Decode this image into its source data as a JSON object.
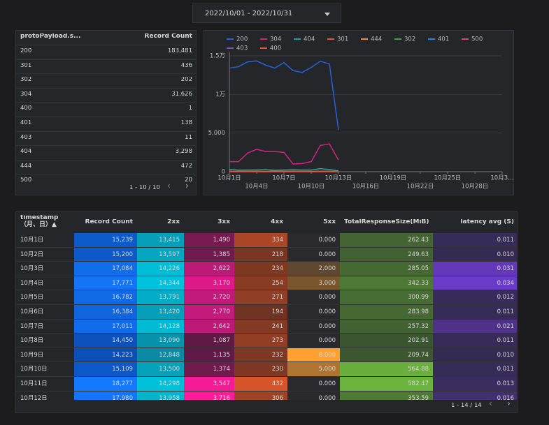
{
  "date_range": {
    "label": "2022/10/01 - 2022/10/31"
  },
  "top_table": {
    "headers": [
      "protoPayload.s...",
      "Record Count"
    ],
    "rows": [
      [
        "200",
        "183,481"
      ],
      [
        "301",
        "436"
      ],
      [
        "302",
        "202"
      ],
      [
        "304",
        "31,626"
      ],
      [
        "400",
        "1"
      ],
      [
        "401",
        "138"
      ],
      [
        "403",
        "11"
      ],
      [
        "404",
        "3,298"
      ],
      [
        "444",
        "472"
      ],
      [
        "500",
        "20"
      ]
    ],
    "pagination": "1 - 10 / 10"
  },
  "chart_data": {
    "type": "line",
    "categories": [
      "10月1日",
      null,
      null,
      "10月4日",
      null,
      null,
      "10月7日",
      null,
      null,
      "10月10日",
      null,
      null,
      "10月13日",
      null,
      null,
      "10月16日",
      null,
      null,
      "10月19日",
      null,
      null,
      "10月22日",
      null,
      null,
      "10月25日",
      null,
      null,
      "10月28日",
      null,
      null,
      "10月3…"
    ],
    "ylim": [
      0,
      15500
    ],
    "yticks": [
      0,
      {
        "value": 5000,
        "label": "5,000"
      },
      {
        "value": 10000,
        "label": "1万"
      },
      {
        "value": 15000,
        "label": "1.5万"
      }
    ],
    "grid": true,
    "legend": "top",
    "series": [
      {
        "name": "200",
        "color": "#2563d6",
        "values": [
          13415,
          13597,
          14226,
          14344,
          13791,
          13420,
          14128,
          13090,
          12848,
          13500,
          14298,
          13958,
          5400,
          null,
          null,
          null,
          null,
          null,
          null,
          null,
          null,
          null,
          null,
          null,
          null,
          null,
          null,
          null,
          null,
          null,
          null
        ]
      },
      {
        "name": "304",
        "color": "#d4237f",
        "values": [
          1300,
          1300,
          2400,
          2900,
          2600,
          2600,
          2500,
          1000,
          1050,
          1300,
          3400,
          3600,
          1500,
          null,
          null,
          null,
          null,
          null,
          null,
          null,
          null,
          null,
          null,
          null,
          null,
          null,
          null,
          null,
          null,
          null,
          null
        ]
      },
      {
        "name": "404",
        "color": "#1fa5a5",
        "values": [
          300,
          200,
          220,
          230,
          260,
          180,
          220,
          250,
          210,
          210,
          400,
          280,
          100,
          null,
          null,
          null,
          null,
          null,
          null,
          null,
          null,
          null,
          null,
          null,
          null,
          null,
          null,
          null,
          null,
          null,
          null
        ]
      },
      {
        "name": "301",
        "color": "#e05a2b",
        "values": [
          40,
          35,
          30,
          30,
          35,
          30,
          30,
          35,
          35,
          30,
          40,
          40,
          15,
          null,
          null,
          null,
          null,
          null,
          null,
          null,
          null,
          null,
          null,
          null,
          null,
          null,
          null,
          null,
          null,
          null,
          null
        ]
      },
      {
        "name": "444",
        "color": "#f08c30",
        "values": [
          40,
          35,
          35,
          40,
          35,
          40,
          35,
          40,
          35,
          35,
          40,
          40,
          20,
          null,
          null,
          null,
          null,
          null,
          null,
          null,
          null,
          null,
          null,
          null,
          null,
          null,
          null,
          null,
          null,
          null,
          null
        ]
      },
      {
        "name": "302",
        "color": "#3ea34a",
        "values": [
          15,
          15,
          15,
          15,
          15,
          15,
          15,
          15,
          15,
          15,
          15,
          15,
          5,
          null,
          null,
          null,
          null,
          null,
          null,
          null,
          null,
          null,
          null,
          null,
          null,
          null,
          null,
          null,
          null,
          null,
          null
        ]
      },
      {
        "name": "401",
        "color": "#1e88e5",
        "values": [
          10,
          10,
          12,
          10,
          10,
          10,
          12,
          10,
          10,
          10,
          12,
          10,
          5,
          null,
          null,
          null,
          null,
          null,
          null,
          null,
          null,
          null,
          null,
          null,
          null,
          null,
          null,
          null,
          null,
          null,
          null
        ]
      },
      {
        "name": "500",
        "color": "#e0457b",
        "values": [
          0,
          0,
          2,
          3,
          0,
          0,
          0,
          0,
          8,
          5,
          0,
          0,
          0,
          null,
          null,
          null,
          null,
          null,
          null,
          null,
          null,
          null,
          null,
          null,
          null,
          null,
          null,
          null,
          null,
          null,
          null
        ]
      },
      {
        "name": "403",
        "color": "#7b4fd0",
        "values": [
          1,
          1,
          1,
          1,
          1,
          1,
          1,
          1,
          1,
          1,
          1,
          0,
          0,
          null,
          null,
          null,
          null,
          null,
          null,
          null,
          null,
          null,
          null,
          null,
          null,
          null,
          null,
          null,
          null,
          null,
          null
        ]
      },
      {
        "name": "400",
        "color": "#e8552d",
        "values": [
          0,
          0,
          0,
          0,
          0,
          0,
          0,
          0,
          1,
          0,
          0,
          0,
          0,
          null,
          null,
          null,
          null,
          null,
          null,
          null,
          null,
          null,
          null,
          null,
          null,
          null,
          null,
          null,
          null,
          null,
          null
        ]
      }
    ]
  },
  "bottom_table": {
    "headers": [
      "timestamp\n（月、日）▲",
      "Record Count",
      "2xx",
      "3xx",
      "4xx",
      "5xx",
      "TotalResponseSize(MiB)",
      "latency avg (S)"
    ],
    "column_colors": [
      null,
      [
        "#0b4fb8",
        "#1479ff"
      ],
      [
        "#0a8aa3",
        "#00c2dc"
      ],
      [
        "#5e1a45",
        "#ff1a9c"
      ],
      [
        "#6e3322",
        "#d6552a"
      ],
      [
        "#2a2a2e",
        "#ffa030"
      ],
      [
        "#3c5531",
        "#6cb33e"
      ],
      [
        "#352b52",
        "#6a3bc8"
      ]
    ],
    "rows": [
      [
        "10月1日",
        "15,239",
        "13,415",
        "1,490",
        "334",
        "0.000",
        "262.43",
        "0.011"
      ],
      [
        "10月2日",
        "15,200",
        "13,597",
        "1,385",
        "218",
        "0.000",
        "249.63",
        "0.010"
      ],
      [
        "10月3日",
        "17,084",
        "14,226",
        "2,622",
        "234",
        "2.000",
        "285.05",
        "0.031"
      ],
      [
        "10月4日",
        "17,771",
        "14,344",
        "3,170",
        "254",
        "3.000",
        "342.33",
        "0.034"
      ],
      [
        "10月5日",
        "16,782",
        "13,791",
        "2,720",
        "271",
        "0.000",
        "300.99",
        "0.012"
      ],
      [
        "10月6日",
        "16,384",
        "13,420",
        "2,770",
        "194",
        "0.000",
        "283.98",
        "0.011"
      ],
      [
        "10月7日",
        "17,011",
        "14,128",
        "2,642",
        "241",
        "0.000",
        "257.32",
        "0.021"
      ],
      [
        "10月8日",
        "14,450",
        "13,090",
        "1,087",
        "273",
        "0.000",
        "202.91",
        "0.011"
      ],
      [
        "10月9日",
        "14,223",
        "12,848",
        "1,135",
        "232",
        "8.000",
        "209.74",
        "0.010"
      ],
      [
        "10月10日",
        "15,109",
        "13,500",
        "1,374",
        "230",
        "5.000",
        "564.88",
        "0.011"
      ],
      [
        "10月11日",
        "18,277",
        "14,298",
        "3,547",
        "432",
        "0.000",
        "582.47",
        "0.013"
      ],
      [
        "10月12日",
        "17,980",
        "13,958",
        "3,716",
        "306",
        "0.000",
        "353.59",
        "0.016"
      ]
    ],
    "pagination": "1 - 14 / 14"
  }
}
